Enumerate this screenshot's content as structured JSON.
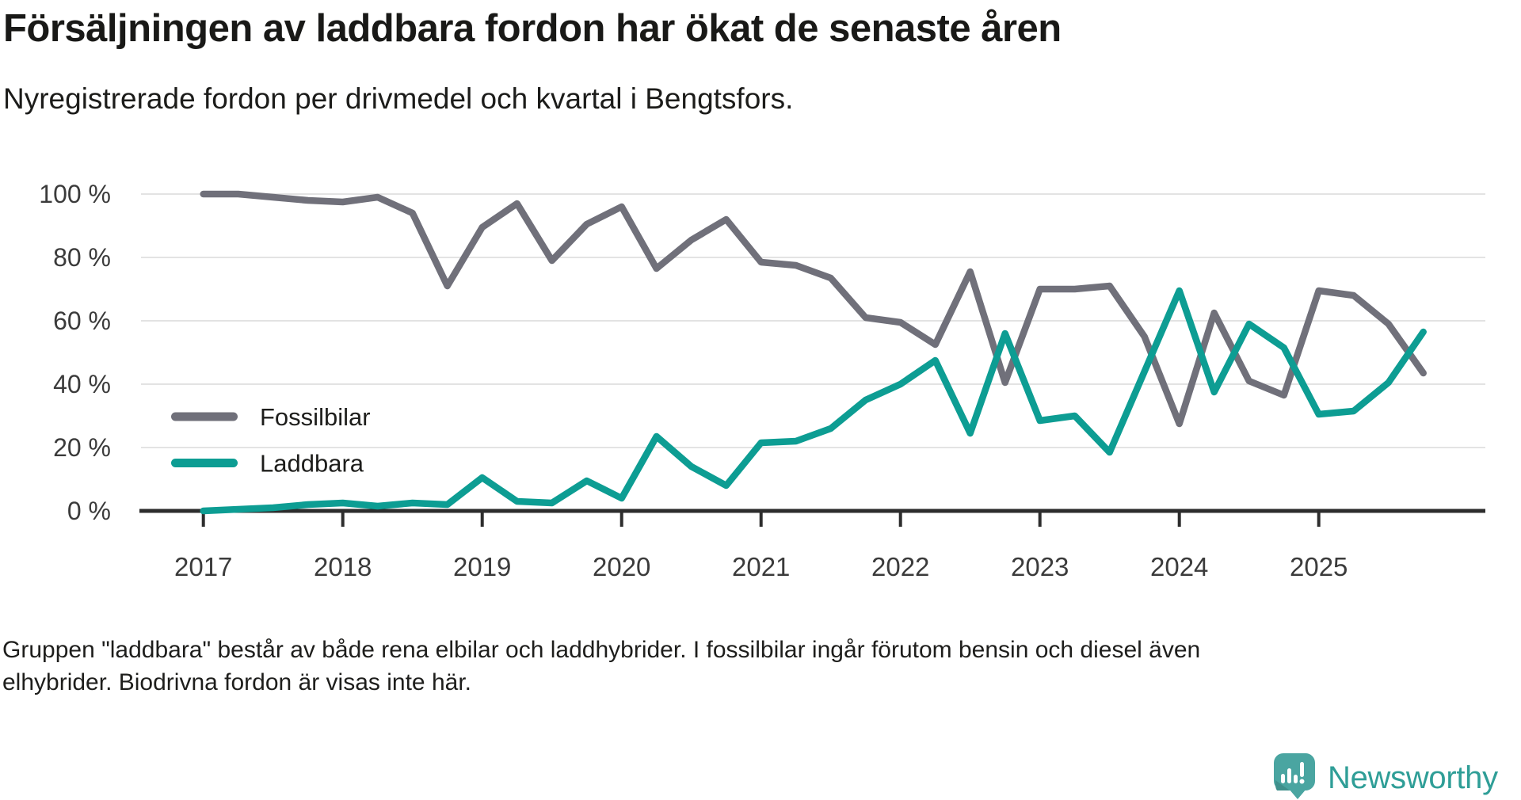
{
  "chart_data": {
    "type": "line",
    "title": "Försäljningen av laddbara fordon har ökat de senaste åren",
    "subtitle": "Nyregistrerade fordon per drivmedel och kvartal i Bengtsfors.",
    "x": [
      "2017Q1",
      "2017Q2",
      "2017Q3",
      "2017Q4",
      "2018Q1",
      "2018Q2",
      "2018Q3",
      "2018Q4",
      "2019Q1",
      "2019Q2",
      "2019Q3",
      "2019Q4",
      "2020Q1",
      "2020Q2",
      "2020Q3",
      "2020Q4",
      "2021Q1",
      "2021Q2",
      "2021Q3",
      "2021Q4",
      "2022Q1",
      "2022Q2",
      "2022Q3",
      "2022Q4",
      "2023Q1",
      "2023Q2",
      "2023Q3",
      "2023Q4",
      "2024Q1",
      "2024Q2",
      "2024Q3",
      "2024Q4",
      "2025Q1",
      "2025Q2",
      "2025Q3",
      "2025Q4"
    ],
    "series": [
      {
        "name": "Fossilbilar",
        "color": "#70707a",
        "values": [
          100,
          100,
          99,
          98,
          97.5,
          99,
          94,
          71,
          89.5,
          97,
          79,
          90.5,
          96,
          76.5,
          85.5,
          92,
          78.5,
          77.5,
          73.5,
          61,
          59.5,
          52.5,
          75.5,
          40.5,
          70,
          70,
          71,
          55,
          27.5,
          62.5,
          41,
          36.5,
          69.5,
          68,
          59,
          43.5
        ]
      },
      {
        "name": "Laddbara",
        "color": "#0d9d93",
        "values": [
          0,
          0.5,
          1,
          2,
          2.5,
          1.5,
          2.5,
          2,
          10.5,
          3,
          2.5,
          9.5,
          4,
          23.5,
          14,
          8,
          21.5,
          22,
          26,
          35,
          40,
          47.5,
          24.5,
          56,
          28.5,
          30,
          18.5,
          44,
          69.5,
          37.5,
          59,
          51.5,
          30.5,
          31.5,
          40.5,
          56.5
        ]
      }
    ],
    "ylim": [
      0,
      100
    ],
    "y_ticks": [
      0,
      20,
      40,
      60,
      80,
      100
    ],
    "y_tick_suffix": " %",
    "x_tick_years": [
      "2017",
      "2018",
      "2019",
      "2020",
      "2021",
      "2022",
      "2023",
      "2024",
      "2025"
    ],
    "grid": "horizontal",
    "legend_position": "inside-left",
    "axis_color": "#2d2d2d",
    "grid_color": "#e3e3e3",
    "tick_label_color": "#3b3b3b",
    "legend_label_color": "#1d1d1b"
  },
  "footer": {
    "line1": "Gruppen \"laddbara\" består av både rena elbilar och laddhybrider. I fossilbilar ingår förutom bensin och diesel även",
    "line2": "elhybrider. Biodrivna fordon är visas inte här."
  },
  "branding": {
    "name": "Newsworthy",
    "text_color": "#2f9e97",
    "icon": "newsworthy-speech-bubble-barchart-icon",
    "icon_color": "#4aa5a1",
    "icon_shade_color": "#3f908c",
    "icon_bar_color": "#ffffff"
  }
}
